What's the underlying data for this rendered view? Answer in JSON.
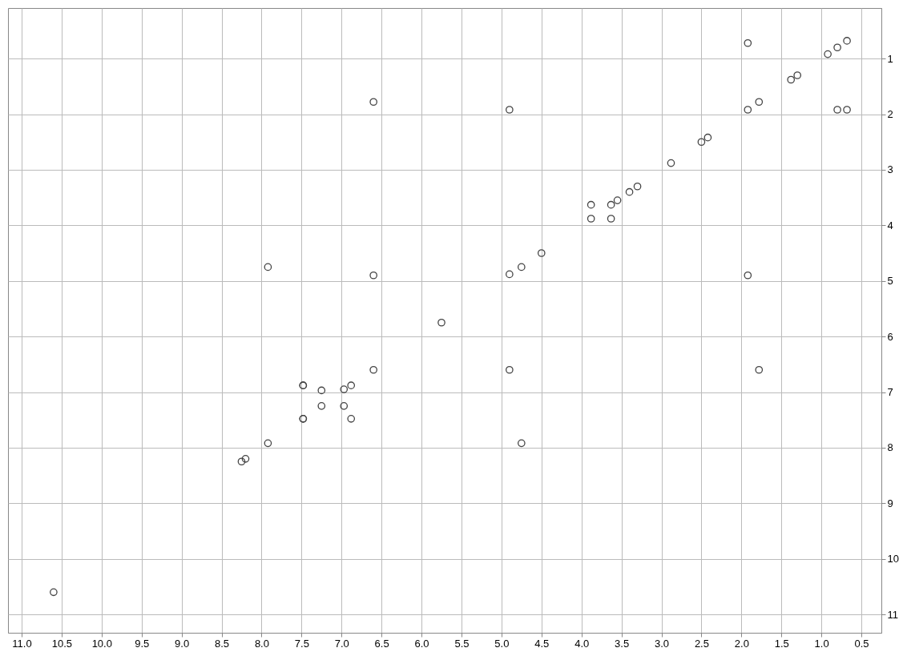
{
  "chart_data": {
    "type": "scatter",
    "marker": "circle",
    "grid": true,
    "x": [
      10.6,
      8.25,
      8.2,
      7.92,
      7.48,
      7.25,
      6.97,
      6.88,
      6.6,
      5.75,
      4.9,
      4.75,
      4.5,
      3.88,
      3.88,
      3.63,
      3.63,
      3.55,
      3.4,
      3.3,
      2.88,
      2.5,
      2.42,
      1.92,
      1.78,
      1.38,
      1.3,
      0.92,
      0.8,
      0.68,
      1.92,
      7.92,
      4.75,
      6.6,
      4.9,
      6.6,
      1.78,
      4.9,
      1.92,
      7.48,
      6.88,
      7.25,
      6.97,
      0.8,
      0.68,
      7.48,
      7.48
    ],
    "series": [
      {
        "color": "#444444",
        "values": [
          10.6,
          8.25,
          8.2,
          7.92,
          7.48,
          7.25,
          6.95,
          6.88,
          6.6,
          5.75,
          4.88,
          4.75,
          4.5,
          3.88,
          3.63,
          3.63,
          3.88,
          3.55,
          3.4,
          3.3,
          2.88,
          2.5,
          2.42,
          1.92,
          1.78,
          1.38,
          1.3,
          0.92,
          0.8,
          0.68,
          0.72,
          4.75,
          7.92,
          4.9,
          6.6,
          1.78,
          6.6,
          1.92,
          4.9,
          6.88,
          7.48,
          6.97,
          7.25,
          1.92,
          1.92,
          6.88,
          7.48
        ]
      }
    ],
    "xlim": [
      11.17,
      0.25
    ],
    "xticks": [
      {
        "value": 11,
        "label": "11.0"
      },
      {
        "value": 10.5,
        "label": "10.5"
      },
      {
        "value": 10,
        "label": "10.0"
      },
      {
        "value": 9.5,
        "label": "9.5"
      },
      {
        "value": 9,
        "label": "9.0"
      },
      {
        "value": 8.5,
        "label": "8.5"
      },
      {
        "value": 8,
        "label": "8.0"
      },
      {
        "value": 7.5,
        "label": "7.5"
      },
      {
        "value": 7,
        "label": "7.0"
      },
      {
        "value": 6.5,
        "label": "6.5"
      },
      {
        "value": 6,
        "label": "6.0"
      },
      {
        "value": 5.5,
        "label": "5.5"
      },
      {
        "value": 5,
        "label": "5.0"
      },
      {
        "value": 4.5,
        "label": "4.5"
      },
      {
        "value": 4,
        "label": "4.0"
      },
      {
        "value": 3.5,
        "label": "3.5"
      },
      {
        "value": 3,
        "label": "3.0"
      },
      {
        "value": 2.5,
        "label": "2.5"
      },
      {
        "value": 2,
        "label": "2.0"
      },
      {
        "value": 1.5,
        "label": "1.5"
      },
      {
        "value": 1,
        "label": "1.0"
      },
      {
        "value": 0.5,
        "label": "0.5"
      }
    ],
    "ylim": [
      11.33,
      0.09
    ],
    "yticks": [
      1,
      2,
      3,
      4,
      5,
      6,
      7,
      8,
      9,
      10,
      11
    ]
  }
}
